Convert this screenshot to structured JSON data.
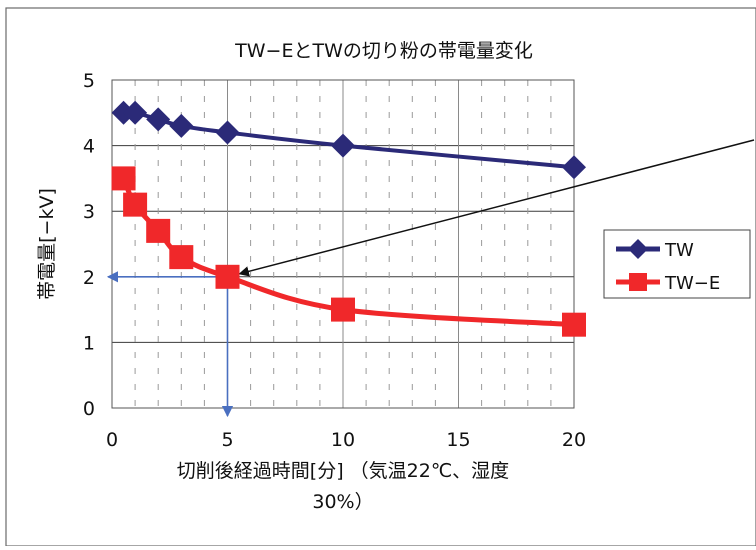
{
  "chart_data": {
    "type": "line",
    "title": "TW−EとTWの切り粉の帯電量変化",
    "xlabel": "切削後経過時間[分] （気温22℃、湿度30%）",
    "xlabel_lines": [
      "切削後経過時間[分] （気温22℃、湿度",
      "30%）"
    ],
    "ylabel": "帯電量[−kV]",
    "xlim": [
      0,
      20
    ],
    "ylim": [
      0,
      5
    ],
    "xticks": [
      0,
      5,
      10,
      15,
      20
    ],
    "yticks": [
      0,
      1,
      2,
      3,
      4,
      5
    ],
    "grid": true,
    "legend_position": "right",
    "series": [
      {
        "name": "TW",
        "color": "#2b2a78",
        "marker": "diamond",
        "x": [
          0.5,
          1,
          2,
          3,
          5,
          10,
          20
        ],
        "y": [
          4.5,
          4.5,
          4.4,
          4.3,
          4.2,
          4.0,
          3.67
        ]
      },
      {
        "name": "TW−E",
        "color": "#f0282a",
        "marker": "square",
        "x": [
          0.5,
          1,
          2,
          3,
          5,
          10,
          20
        ],
        "y": [
          3.5,
          3.1,
          2.7,
          2.3,
          2.0,
          1.5,
          1.27
        ]
      }
    ],
    "annotations": [
      {
        "type": "reference-arrows",
        "x": 5,
        "y": 2.0,
        "color": "#4a6fc0"
      },
      {
        "type": "callout-arrow",
        "x": 5,
        "y": 2.0,
        "from": "right-edge",
        "color": "#111111"
      }
    ]
  }
}
